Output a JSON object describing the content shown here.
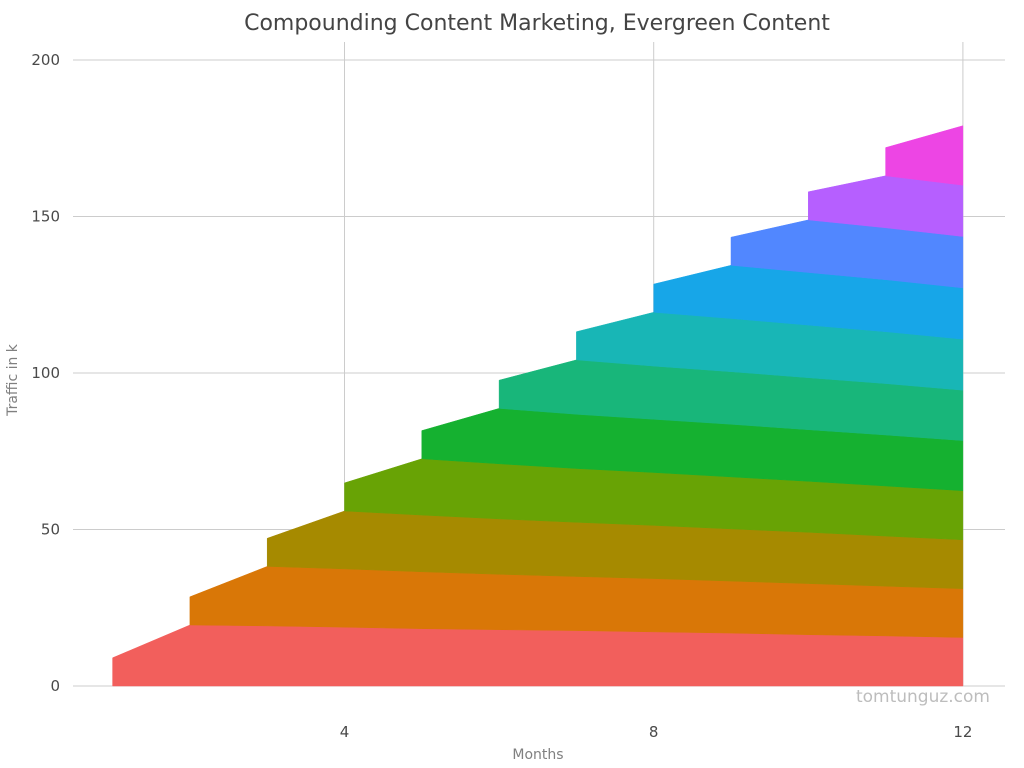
{
  "chart_data": {
    "type": "area",
    "title": "Compounding Content Marketing, Evergreen Content",
    "xlabel": "Months",
    "ylabel": "Traffic in k",
    "watermark": "tomtunguz.com",
    "xlim": [
      0.5,
      12.5
    ],
    "ylim": [
      0,
      200
    ],
    "x_ticks": [
      4,
      8,
      12
    ],
    "y_ticks": [
      0,
      50,
      100,
      150,
      200
    ],
    "grid": true,
    "legend": "none",
    "stacked": true,
    "series": [
      {
        "start_month": 1,
        "color": "#f25f5c",
        "values": [
          9,
          19.5,
          19.2,
          18.8,
          18.3,
          18.0,
          17.7,
          17.3,
          16.9,
          16.4,
          16.0,
          15.5
        ]
      },
      {
        "start_month": 2,
        "color": "#d97707",
        "values": [
          9,
          19.0,
          18.6,
          18.2,
          17.7,
          17.3,
          17.0,
          16.6,
          16.3,
          15.9,
          15.6
        ]
      },
      {
        "start_month": 3,
        "color": "#a68a00",
        "values": [
          9,
          18.5,
          18.1,
          17.7,
          17.3,
          17.0,
          16.7,
          16.4,
          16.0,
          15.6
        ]
      },
      {
        "start_month": 4,
        "color": "#68a305",
        "values": [
          9,
          18.0,
          17.6,
          17.2,
          16.9,
          16.6,
          16.3,
          16.0,
          15.7
        ]
      },
      {
        "start_month": 5,
        "color": "#15b130",
        "values": [
          9,
          17.7,
          17.3,
          17.0,
          16.8,
          16.5,
          16.3,
          16.0
        ]
      },
      {
        "start_month": 6,
        "color": "#18b67a",
        "values": [
          9,
          17.4,
          17.0,
          16.8,
          16.6,
          16.4,
          16.1
        ]
      },
      {
        "start_month": 7,
        "color": "#18b6b6",
        "values": [
          9,
          17.2,
          17.0,
          16.8,
          16.6,
          16.3
        ]
      },
      {
        "start_month": 8,
        "color": "#17a6e8",
        "values": [
          9,
          17.0,
          16.8,
          16.6,
          16.4
        ]
      },
      {
        "start_month": 9,
        "color": "#5187ff",
        "values": [
          9,
          16.8,
          16.6,
          16.4
        ]
      },
      {
        "start_month": 10,
        "color": "#b65fff",
        "values": [
          9,
          16.6,
          16.4
        ]
      },
      {
        "start_month": 11,
        "color": "#ed45e4",
        "values": [
          9,
          19.0
        ]
      }
    ]
  }
}
